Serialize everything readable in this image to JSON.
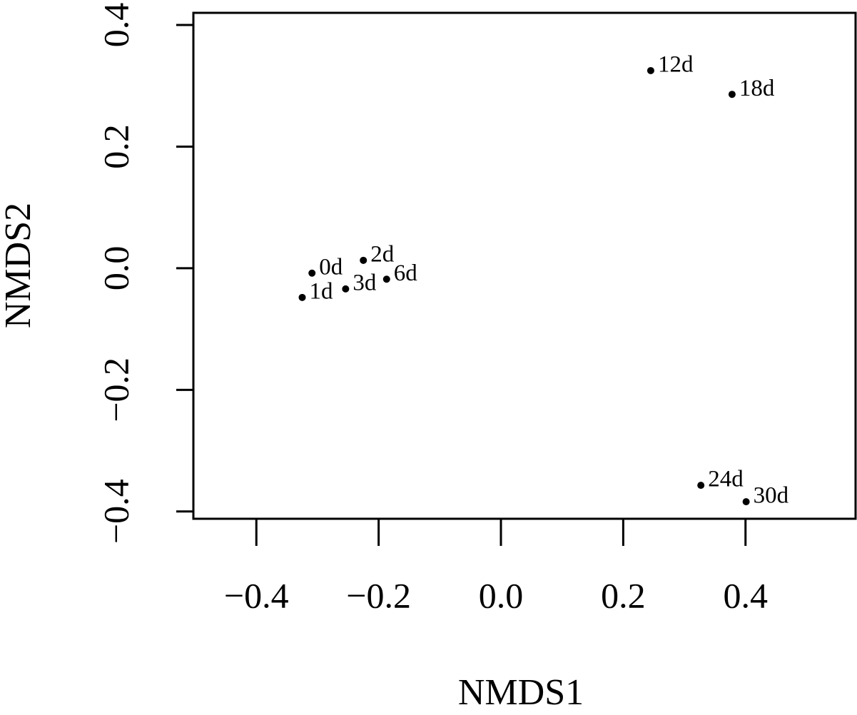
{
  "chart_data": {
    "type": "scatter",
    "x_label": "NMDS1",
    "y_label": "NMDS2",
    "labels": [
      "0d",
      "1d",
      "2d",
      "3d",
      "6d",
      "12d",
      "18d",
      "24d",
      "30d"
    ],
    "x": [
      -0.309,
      -0.325,
      -0.225,
      -0.254,
      -0.187,
      0.245,
      0.378,
      0.327,
      0.401
    ],
    "values": [
      -0.008,
      -0.048,
      0.013,
      -0.034,
      -0.018,
      0.325,
      0.286,
      -0.357,
      -0.384
    ],
    "color": "#000000",
    "xlim": [
      -0.503,
      0.58
    ],
    "ylim": [
      -0.412,
      0.42
    ],
    "xticks": [
      {
        "value": -0.4,
        "label": "−0.4"
      },
      {
        "value": -0.2,
        "label": "−0.2"
      },
      {
        "value": 0,
        "label": "0.0"
      },
      0.2,
      0.4
    ],
    "yticks": [
      {
        "value": -0.4,
        "label": "−0.4"
      },
      {
        "value": -0.2,
        "label": "−0.2"
      },
      {
        "value": 0,
        "label": "0.0"
      },
      0.2,
      0.4
    ],
    "grid": false
  }
}
